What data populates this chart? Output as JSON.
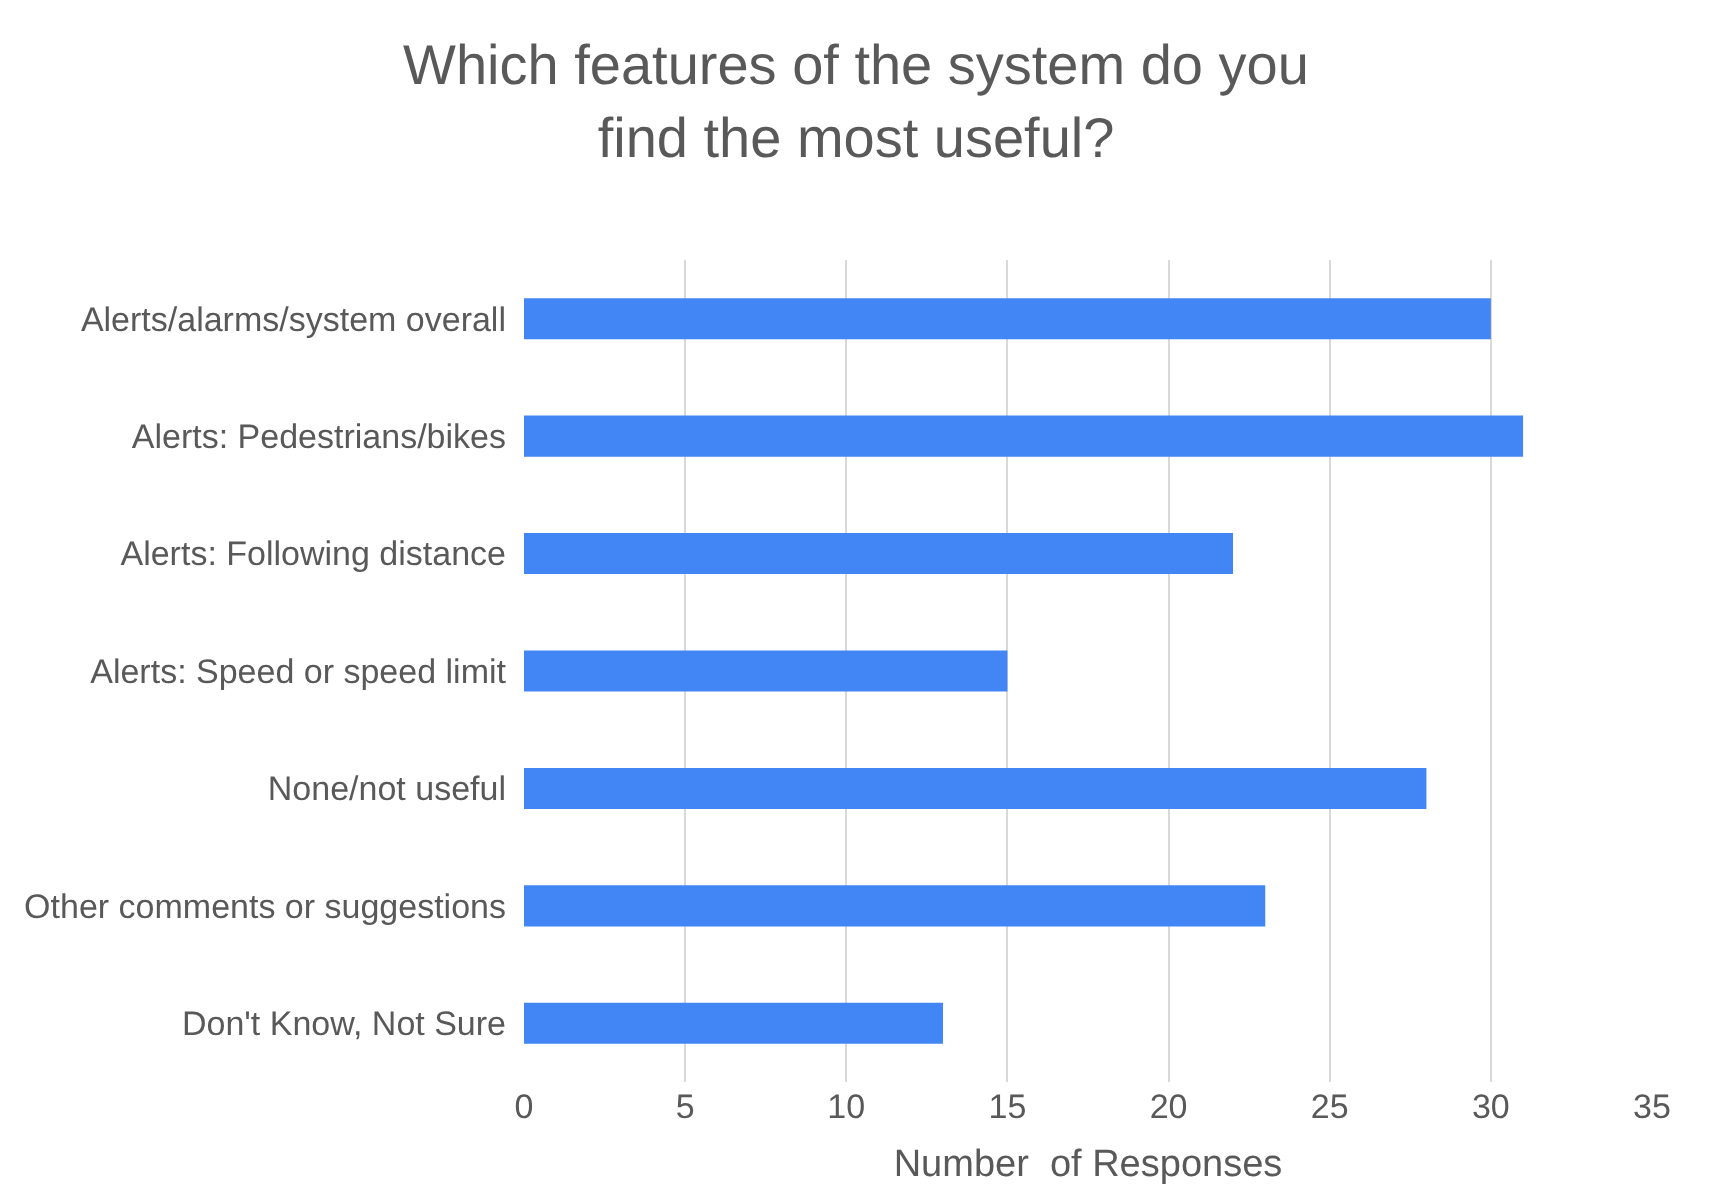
{
  "chart_data": {
    "type": "bar",
    "orientation": "horizontal",
    "title": "Which features of the system do you find the most useful?",
    "xlabel": "Number  of Responses",
    "categories": [
      "Alerts/alarms/system overall",
      "Alerts: Pedestrians/bikes",
      "Alerts: Following distance",
      "Alerts: Speed or speed limit",
      "None/not useful",
      "Other comments or suggestions",
      "Don't Know, Not Sure"
    ],
    "values": [
      30,
      31,
      22,
      15,
      28,
      23,
      13
    ],
    "color": "#4285f4",
    "xlim": [
      0,
      35
    ],
    "xticks": [
      0,
      5,
      10,
      15,
      20,
      25,
      30,
      35
    ],
    "grid": "x",
    "legend": false
  }
}
